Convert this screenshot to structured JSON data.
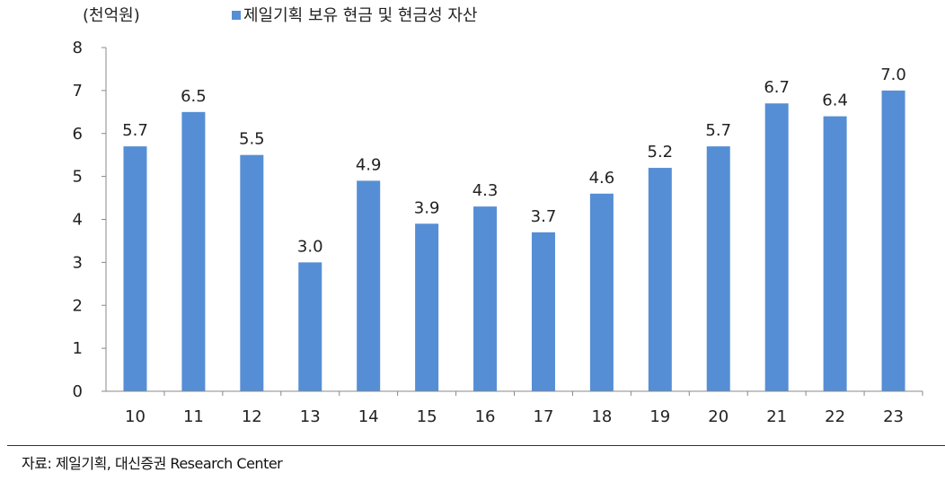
{
  "chart_data": {
    "type": "bar",
    "unit_label": "(천억원)",
    "categories": [
      "10",
      "11",
      "12",
      "13",
      "14",
      "15",
      "16",
      "17",
      "18",
      "19",
      "20",
      "21",
      "22",
      "23"
    ],
    "series": [
      {
        "name": "제일기획 보유 현금 및 현금성 자산",
        "values": [
          5.7,
          6.5,
          5.5,
          3.0,
          4.9,
          3.9,
          4.3,
          3.7,
          4.6,
          5.2,
          5.7,
          6.7,
          6.4,
          7.0
        ],
        "color": "#558ed5"
      }
    ],
    "ylim": [
      0,
      8
    ],
    "yticks": [
      "0",
      "1",
      "2",
      "3",
      "4",
      "5",
      "6",
      "7",
      "8"
    ],
    "data_labels": [
      "5.7",
      "6.5",
      "5.5",
      "3.0",
      "4.9",
      "3.9",
      "4.3",
      "3.7",
      "4.6",
      "5.2",
      "5.7",
      "6.7",
      "6.4",
      "7.0"
    ],
    "legend_position": "top",
    "grid": false
  },
  "source": "자료: 제일기획, 대신증권 Research Center"
}
